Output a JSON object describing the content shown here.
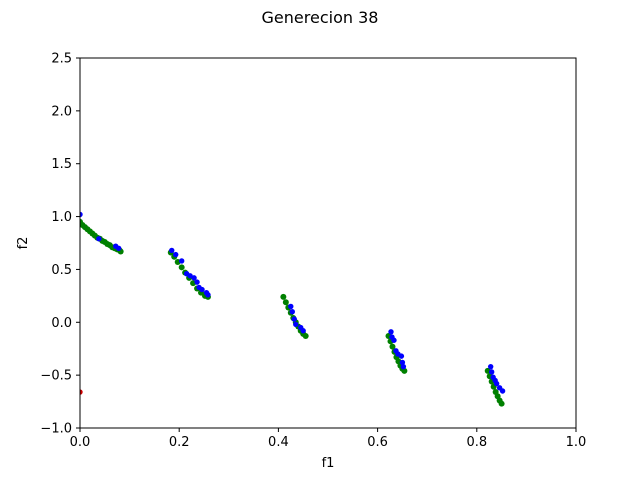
{
  "chart_data": {
    "type": "scatter",
    "title": "Generecion 38",
    "xlabel": "f1",
    "ylabel": "f2",
    "xlim": [
      0.0,
      1.0
    ],
    "ylim": [
      -1.0,
      2.5
    ],
    "xticks": [
      "0.0",
      "0.2",
      "0.4",
      "0.6",
      "0.8",
      "1.0"
    ],
    "yticks": [
      "−1.0",
      "−0.5",
      "0.0",
      "0.5",
      "1.0",
      "1.5",
      "2.0",
      "2.5"
    ],
    "xtick_values": [
      0.0,
      0.2,
      0.4,
      0.6,
      0.8,
      1.0
    ],
    "ytick_values": [
      -1.0,
      -0.5,
      0.0,
      0.5,
      1.0,
      1.5,
      2.0,
      2.5
    ],
    "grid": false,
    "series": [
      {
        "color": "#008000",
        "points": [
          [
            0.0,
            0.95
          ],
          [
            0.005,
            0.92
          ],
          [
            0.01,
            0.9
          ],
          [
            0.015,
            0.88
          ],
          [
            0.02,
            0.86
          ],
          [
            0.025,
            0.84
          ],
          [
            0.03,
            0.82
          ],
          [
            0.035,
            0.8
          ],
          [
            0.04,
            0.79
          ],
          [
            0.045,
            0.77
          ],
          [
            0.05,
            0.76
          ],
          [
            0.055,
            0.74
          ],
          [
            0.06,
            0.73
          ],
          [
            0.065,
            0.71
          ],
          [
            0.07,
            0.7
          ],
          [
            0.075,
            0.69
          ],
          [
            0.08,
            0.68
          ],
          [
            0.082,
            0.67
          ],
          [
            0.183,
            0.66
          ],
          [
            0.19,
            0.62
          ],
          [
            0.197,
            0.57
          ],
          [
            0.205,
            0.52
          ],
          [
            0.212,
            0.47
          ],
          [
            0.22,
            0.42
          ],
          [
            0.228,
            0.37
          ],
          [
            0.236,
            0.32
          ],
          [
            0.244,
            0.28
          ],
          [
            0.252,
            0.25
          ],
          [
            0.258,
            0.24
          ],
          [
            0.41,
            0.24
          ],
          [
            0.415,
            0.19
          ],
          [
            0.42,
            0.14
          ],
          [
            0.425,
            0.09
          ],
          [
            0.43,
            0.04
          ],
          [
            0.435,
            0.0
          ],
          [
            0.44,
            -0.04
          ],
          [
            0.445,
            -0.08
          ],
          [
            0.45,
            -0.11
          ],
          [
            0.455,
            -0.13
          ],
          [
            0.622,
            -0.13
          ],
          [
            0.626,
            -0.18
          ],
          [
            0.63,
            -0.23
          ],
          [
            0.634,
            -0.28
          ],
          [
            0.638,
            -0.33
          ],
          [
            0.642,
            -0.37
          ],
          [
            0.646,
            -0.41
          ],
          [
            0.65,
            -0.44
          ],
          [
            0.654,
            -0.46
          ],
          [
            0.822,
            -0.46
          ],
          [
            0.826,
            -0.51
          ],
          [
            0.83,
            -0.56
          ],
          [
            0.834,
            -0.61
          ],
          [
            0.838,
            -0.66
          ],
          [
            0.842,
            -0.7
          ],
          [
            0.846,
            -0.74
          ],
          [
            0.85,
            -0.77
          ]
        ]
      },
      {
        "color": "#0000ff",
        "points": [
          [
            0.0,
            1.02
          ],
          [
            0.038,
            0.79
          ],
          [
            0.072,
            0.72
          ],
          [
            0.078,
            0.7
          ],
          [
            0.185,
            0.68
          ],
          [
            0.193,
            0.64
          ],
          [
            0.205,
            0.58
          ],
          [
            0.215,
            0.46
          ],
          [
            0.222,
            0.44
          ],
          [
            0.23,
            0.42
          ],
          [
            0.236,
            0.38
          ],
          [
            0.24,
            0.33
          ],
          [
            0.246,
            0.31
          ],
          [
            0.255,
            0.28
          ],
          [
            0.258,
            0.26
          ],
          [
            0.425,
            0.15
          ],
          [
            0.428,
            0.1
          ],
          [
            0.432,
            0.03
          ],
          [
            0.435,
            -0.02
          ],
          [
            0.445,
            -0.05
          ],
          [
            0.45,
            -0.08
          ],
          [
            0.627,
            -0.09
          ],
          [
            0.629,
            -0.14
          ],
          [
            0.633,
            -0.17
          ],
          [
            0.637,
            -0.27
          ],
          [
            0.641,
            -0.3
          ],
          [
            0.648,
            -0.32
          ],
          [
            0.65,
            -0.38
          ],
          [
            0.652,
            -0.42
          ],
          [
            0.828,
            -0.42
          ],
          [
            0.83,
            -0.47
          ],
          [
            0.833,
            -0.52
          ],
          [
            0.837,
            -0.55
          ],
          [
            0.84,
            -0.58
          ],
          [
            0.846,
            -0.62
          ],
          [
            0.852,
            -0.65
          ]
        ]
      },
      {
        "color": "#cc0000",
        "points": [
          [
            0.0,
            -0.66
          ]
        ]
      }
    ]
  }
}
